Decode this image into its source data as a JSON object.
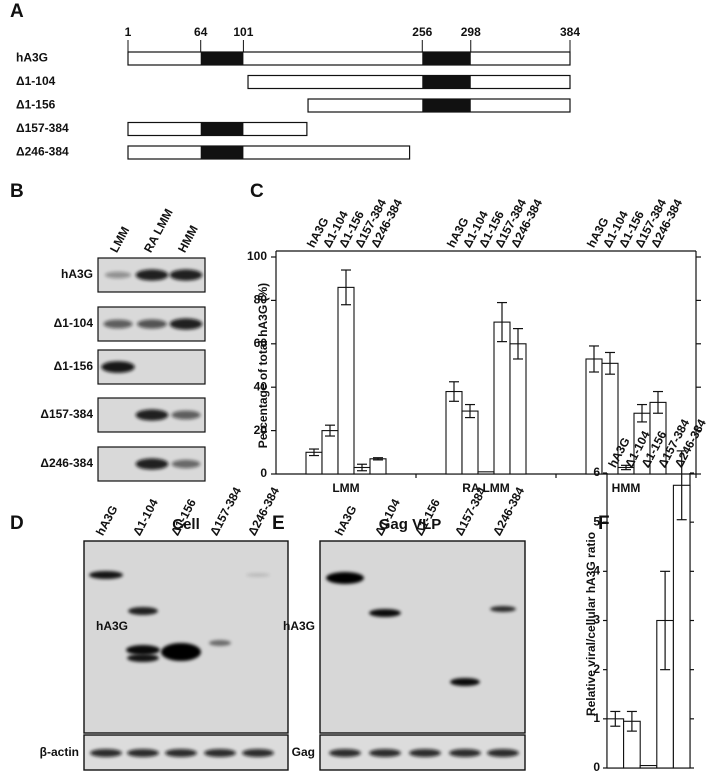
{
  "panel_labels": [
    "A",
    "B",
    "C",
    "D",
    "E",
    "F"
  ],
  "panel_a": {
    "ticks": [
      1,
      64,
      101,
      256,
      298,
      384
    ],
    "domains": [
      [
        64,
        101
      ],
      [
        256,
        298
      ]
    ],
    "constructs": [
      {
        "label": "hA3G",
        "range": [
          1,
          384
        ]
      },
      {
        "label": "Δ1-104",
        "range": [
          105,
          384
        ]
      },
      {
        "label": "Δ1-156",
        "range": [
          157,
          384
        ]
      },
      {
        "label": "Δ157-384",
        "range": [
          1,
          156
        ]
      },
      {
        "label": "Δ246-384",
        "range": [
          1,
          245
        ]
      }
    ]
  },
  "panel_b": {
    "lanes": [
      "LMM",
      "RA LMM",
      "HMM"
    ],
    "rows": [
      "hA3G",
      "Δ1-104",
      "Δ1-156",
      "Δ157-384",
      "Δ246-384"
    ]
  },
  "panel_d": {
    "title": "Cell",
    "lanes": [
      "hA3G",
      "Δ1-104",
      "Δ1-156",
      "Δ157-384",
      "Δ246-384"
    ],
    "blot_label": "hA3G",
    "loading_label": "β-actin"
  },
  "panel_e": {
    "title": "Gag VLP",
    "lanes": [
      "hA3G",
      "Δ1-104",
      "Δ1-156",
      "Δ157-384",
      "Δ246-384"
    ],
    "blot_label": "hA3G",
    "loading_label": "Gag"
  },
  "chart_data": [
    {
      "type": "bar",
      "categories": [
        "LMM",
        "RA LMM",
        "HMM"
      ],
      "series": [
        {
          "name": "hA3G",
          "color": "#ffffff",
          "values": [
            10,
            38,
            53
          ],
          "errors": [
            1.5,
            4.5,
            6
          ]
        },
        {
          "name": "Δ1-104",
          "color": "#ffffff",
          "values": [
            20,
            29,
            51
          ],
          "errors": [
            2.5,
            3,
            5
          ]
        },
        {
          "name": "Δ1-156",
          "color": "#ffffff",
          "values": [
            86,
            1,
            3
          ],
          "errors": [
            8,
            0,
            1
          ]
        },
        {
          "name": "Δ157-384",
          "color": "#ffffff",
          "values": [
            3,
            70,
            28
          ],
          "errors": [
            1.5,
            9,
            4
          ]
        },
        {
          "name": "Δ246-384",
          "color": "#ffffff",
          "values": [
            7,
            60,
            33
          ],
          "errors": [
            0.5,
            7,
            5
          ]
        }
      ],
      "y_label": "Percentage of total hA3G (%)",
      "ylim": [
        0,
        100
      ],
      "yticks": [
        0,
        20,
        40,
        60,
        80,
        100
      ]
    },
    {
      "type": "bar",
      "categories": [
        "hA3G",
        "Δ1-104",
        "Δ1-156",
        "Δ157-384",
        "Δ246-384"
      ],
      "values": [
        1.0,
        0.95,
        0.05,
        3.0,
        5.75
      ],
      "errors": [
        0.15,
        0.2,
        0,
        1.0,
        0.7
      ],
      "color": "#ffffff",
      "y_label": "Relative viral/cellular hA3G ratio",
      "ylim": [
        0,
        6
      ],
      "yticks": [
        0,
        1,
        2,
        3,
        4,
        5,
        6
      ]
    }
  ]
}
